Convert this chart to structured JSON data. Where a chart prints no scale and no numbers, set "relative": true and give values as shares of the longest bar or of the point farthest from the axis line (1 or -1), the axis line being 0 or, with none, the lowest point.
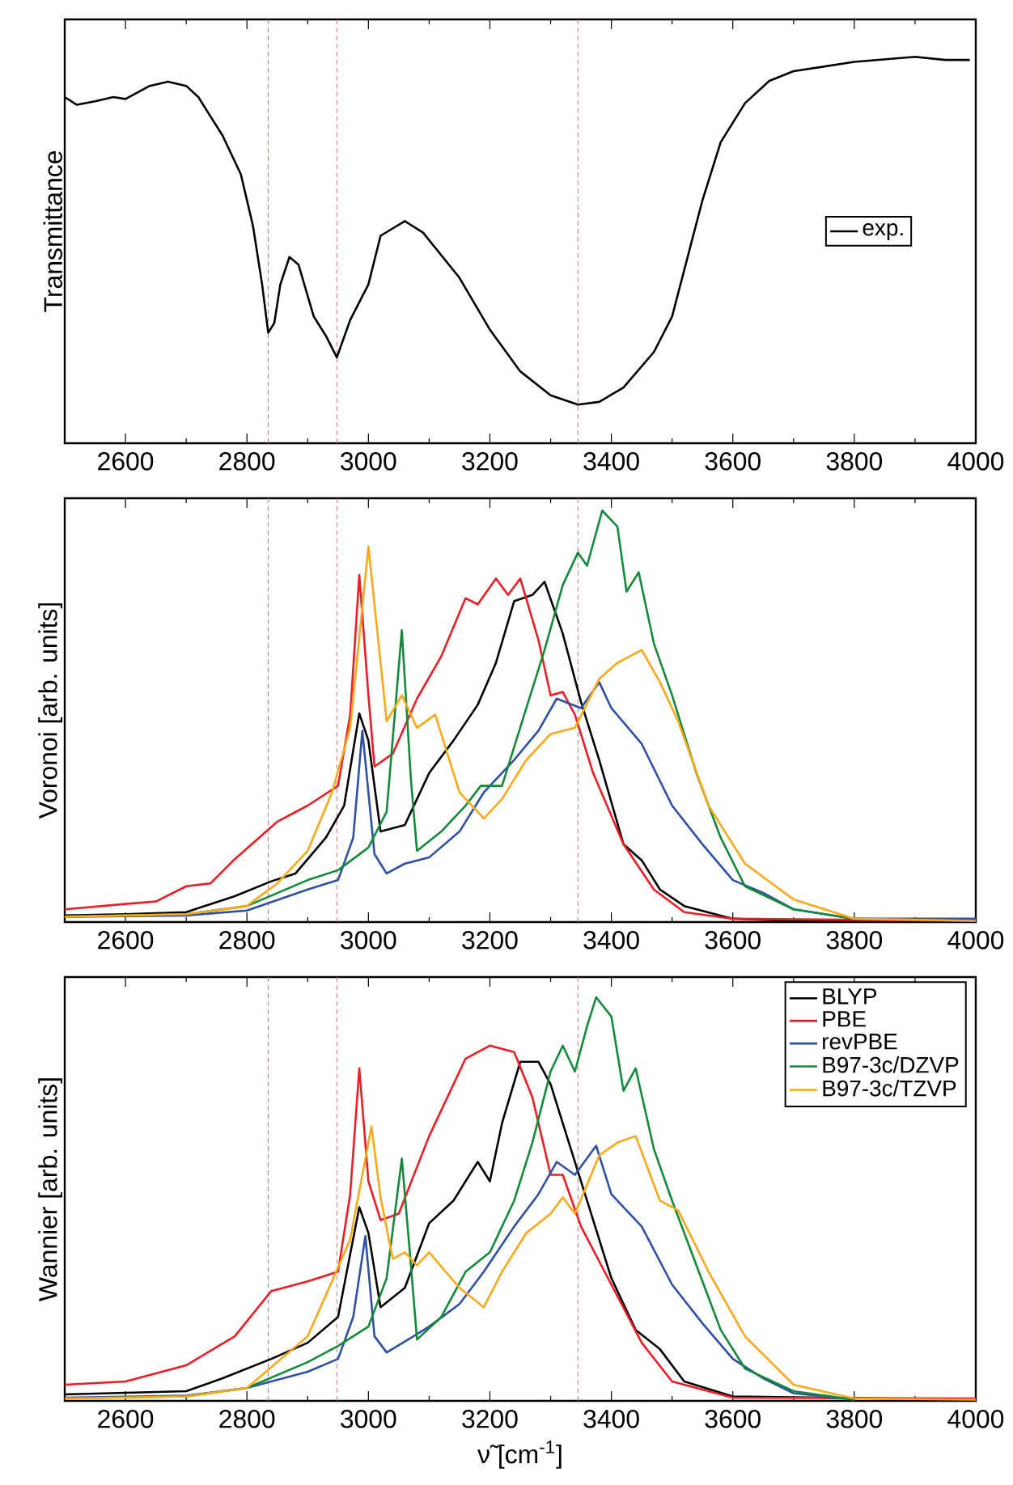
{
  "chart_data": [
    {
      "type": "line",
      "ylabel": "Transmittance",
      "relative": true,
      "xlim": [
        2500,
        4000
      ],
      "xticks": [
        2600,
        2800,
        3000,
        3200,
        3400,
        3600,
        3800,
        4000
      ],
      "legend": "right",
      "tick_labels": "x",
      "ref_lines": [
        {
          "axis": "x",
          "value": 2835,
          "color": "#c07878",
          "line_style": "dashed"
        },
        {
          "axis": "x",
          "value": 2948,
          "color": "#c07878",
          "line_style": "dashed"
        },
        {
          "axis": "x",
          "value": 3345,
          "color": "#c07878",
          "line_style": "dashed"
        }
      ],
      "series": [
        {
          "name": "exp.",
          "color": "#000000",
          "x": [
            2500,
            2520,
            2550,
            2580,
            2600,
            2640,
            2670,
            2700,
            2720,
            2760,
            2790,
            2810,
            2825,
            2835,
            2845,
            2855,
            2870,
            2885,
            2910,
            2930,
            2948,
            2970,
            3000,
            3020,
            3060,
            3090,
            3150,
            3200,
            3250,
            3300,
            3345,
            3380,
            3420,
            3470,
            3500,
            3550,
            3580,
            3620,
            3660,
            3700,
            3800,
            3900,
            3950,
            3990
          ],
          "values": [
            0.896,
            0.876,
            0.885,
            0.896,
            0.891,
            0.925,
            0.936,
            0.925,
            0.896,
            0.796,
            0.696,
            0.562,
            0.411,
            0.286,
            0.311,
            0.411,
            0.482,
            0.462,
            0.328,
            0.278,
            0.222,
            0.319,
            0.411,
            0.537,
            0.575,
            0.545,
            0.428,
            0.294,
            0.186,
            0.124,
            0.1,
            0.107,
            0.144,
            0.236,
            0.328,
            0.629,
            0.779,
            0.88,
            0.938,
            0.963,
            0.987,
            1.0,
            0.992,
            0.992
          ]
        }
      ]
    },
    {
      "type": "line",
      "ylabel": "Voronoi [arb. units]",
      "relative": true,
      "xlim": [
        2500,
        4000
      ],
      "xticks": [
        2600,
        2800,
        3000,
        3200,
        3400,
        3600,
        3800,
        4000
      ],
      "tick_labels": "x",
      "ref_lines": [
        {
          "axis": "x",
          "value": 2835,
          "color": "#c07878",
          "line_style": "dashed"
        },
        {
          "axis": "x",
          "value": 2948,
          "color": "#c07878",
          "line_style": "dashed"
        },
        {
          "axis": "x",
          "value": 3345,
          "color": "#c07878",
          "line_style": "dashed"
        }
      ],
      "series": [
        {
          "color": "#000000",
          "x": [
            2500,
            2600,
            2700,
            2780,
            2840,
            2880,
            2930,
            2960,
            2985,
            3000,
            3020,
            3060,
            3100,
            3140,
            3180,
            3210,
            3240,
            3270,
            3290,
            3320,
            3350,
            3380,
            3420,
            3450,
            3480,
            3520,
            3600,
            3700,
            3800,
            4000
          ],
          "values": [
            0.016,
            0.019,
            0.024,
            0.063,
            0.099,
            0.118,
            0.205,
            0.283,
            0.507,
            0.441,
            0.22,
            0.236,
            0.362,
            0.441,
            0.528,
            0.63,
            0.78,
            0.795,
            0.827,
            0.701,
            0.535,
            0.394,
            0.189,
            0.15,
            0.079,
            0.039,
            0.008,
            0.003,
            0.003,
            0.003
          ]
        },
        {
          "color": "#ee1c24",
          "x": [
            2500,
            2600,
            2650,
            2700,
            2740,
            2780,
            2820,
            2850,
            2900,
            2950,
            2970,
            2985,
            3000,
            3010,
            3040,
            3080,
            3120,
            3160,
            3180,
            3210,
            3230,
            3250,
            3280,
            3300,
            3320,
            3340,
            3370,
            3420,
            3470,
            3520,
            3600,
            4000
          ],
          "values": [
            0.031,
            0.044,
            0.05,
            0.087,
            0.094,
            0.153,
            0.205,
            0.244,
            0.283,
            0.331,
            0.504,
            0.843,
            0.551,
            0.378,
            0.409,
            0.543,
            0.646,
            0.787,
            0.772,
            0.835,
            0.795,
            0.835,
            0.685,
            0.551,
            0.559,
            0.504,
            0.362,
            0.189,
            0.079,
            0.024,
            0.008,
            0.003
          ]
        },
        {
          "color": "#2e4fa3",
          "x": [
            2500,
            2700,
            2800,
            2900,
            2950,
            2975,
            2990,
            3010,
            3030,
            3060,
            3100,
            3150,
            3190,
            3240,
            3280,
            3310,
            3350,
            3380,
            3400,
            3450,
            3500,
            3550,
            3600,
            3650,
            3700,
            3800,
            4000
          ],
          "values": [
            0.013,
            0.016,
            0.028,
            0.079,
            0.102,
            0.205,
            0.465,
            0.165,
            0.118,
            0.142,
            0.157,
            0.22,
            0.315,
            0.394,
            0.465,
            0.543,
            0.52,
            0.583,
            0.52,
            0.433,
            0.283,
            0.189,
            0.102,
            0.071,
            0.031,
            0.008,
            0.008
          ]
        },
        {
          "color": "#138a3a",
          "x": [
            2500,
            2700,
            2800,
            2900,
            2950,
            3000,
            3030,
            3055,
            3070,
            3080,
            3120,
            3160,
            3185,
            3220,
            3260,
            3290,
            3320,
            3345,
            3360,
            3385,
            3410,
            3425,
            3445,
            3470,
            3500,
            3540,
            3580,
            3620,
            3700,
            3800,
            4000
          ],
          "values": [
            0.013,
            0.019,
            0.039,
            0.102,
            0.126,
            0.181,
            0.268,
            0.709,
            0.346,
            0.173,
            0.22,
            0.283,
            0.331,
            0.331,
            0.52,
            0.661,
            0.819,
            0.898,
            0.866,
            1.0,
            0.961,
            0.803,
            0.85,
            0.677,
            0.551,
            0.362,
            0.205,
            0.087,
            0.031,
            0.008,
            0.003
          ]
        },
        {
          "color": "#fba81a",
          "x": [
            2500,
            2700,
            2800,
            2850,
            2900,
            2940,
            2970,
            3000,
            3020,
            3030,
            3055,
            3080,
            3110,
            3150,
            3190,
            3220,
            3260,
            3300,
            3340,
            3380,
            3410,
            3450,
            3480,
            3510,
            3560,
            3620,
            3700,
            3800,
            4000
          ],
          "values": [
            0.013,
            0.019,
            0.039,
            0.094,
            0.173,
            0.315,
            0.472,
            0.913,
            0.63,
            0.488,
            0.551,
            0.472,
            0.504,
            0.315,
            0.252,
            0.299,
            0.394,
            0.457,
            0.472,
            0.591,
            0.63,
            0.661,
            0.583,
            0.488,
            0.283,
            0.142,
            0.055,
            0.008,
            0.003
          ]
        }
      ]
    },
    {
      "type": "line",
      "ylabel": "Wannier [arb. units]",
      "xlabel": "ν̃ [cm$^{-1}$]",
      "relative": true,
      "xlim": [
        2500,
        4000
      ],
      "xticks": [
        2600,
        2800,
        3000,
        3200,
        3400,
        3600,
        3800,
        4000
      ],
      "legend": "top right",
      "tick_labels": "x",
      "ref_lines": [
        {
          "axis": "x",
          "value": 2835,
          "color": "#c07878",
          "line_style": "dashed"
        },
        {
          "axis": "x",
          "value": 2948,
          "color": "#c07878",
          "line_style": "dashed"
        },
        {
          "axis": "x",
          "value": 3345,
          "color": "#c07878",
          "line_style": "dashed"
        }
      ],
      "series": [
        {
          "name": "BLYP",
          "color": "#000000",
          "x": [
            2500,
            2700,
            2760,
            2840,
            2900,
            2950,
            2985,
            3000,
            3020,
            3060,
            3100,
            3140,
            3180,
            3200,
            3220,
            3250,
            3280,
            3300,
            3330,
            3360,
            3400,
            3440,
            3480,
            3520,
            3600,
            4000
          ],
          "values": [
            0.016,
            0.024,
            0.056,
            0.104,
            0.144,
            0.208,
            0.48,
            0.416,
            0.232,
            0.28,
            0.44,
            0.496,
            0.592,
            0.544,
            0.688,
            0.84,
            0.84,
            0.784,
            0.64,
            0.496,
            0.304,
            0.176,
            0.128,
            0.048,
            0.011,
            0.003
          ]
        },
        {
          "name": "PBE",
          "color": "#ee1c24",
          "x": [
            2500,
            2600,
            2700,
            2780,
            2840,
            2900,
            2950,
            2970,
            2985,
            3000,
            3020,
            3050,
            3100,
            3160,
            3200,
            3240,
            3270,
            3300,
            3320,
            3350,
            3400,
            3450,
            3500,
            3600,
            4000
          ],
          "values": [
            0.04,
            0.048,
            0.088,
            0.16,
            0.272,
            0.296,
            0.32,
            0.512,
            0.824,
            0.544,
            0.448,
            0.464,
            0.656,
            0.848,
            0.88,
            0.864,
            0.752,
            0.56,
            0.56,
            0.432,
            0.288,
            0.144,
            0.048,
            0.008,
            0.006
          ]
        },
        {
          "name": "revPBE",
          "color": "#2e4fa3",
          "x": [
            2500,
            2700,
            2800,
            2900,
            2950,
            2975,
            2995,
            3010,
            3030,
            3060,
            3100,
            3150,
            3190,
            3240,
            3280,
            3310,
            3340,
            3375,
            3400,
            3450,
            3500,
            3550,
            3600,
            3650,
            3700,
            3800
          ],
          "values": [
            0.008,
            0.013,
            0.032,
            0.072,
            0.104,
            0.208,
            0.408,
            0.16,
            0.12,
            0.147,
            0.184,
            0.24,
            0.32,
            0.432,
            0.512,
            0.592,
            0.56,
            0.632,
            0.512,
            0.432,
            0.288,
            0.192,
            0.104,
            0.056,
            0.019,
            0.003
          ]
        },
        {
          "name": "B97-3c/DZVP",
          "color": "#138a3a",
          "x": [
            2500,
            2700,
            2800,
            2900,
            2950,
            3000,
            3030,
            3055,
            3070,
            3080,
            3120,
            3160,
            3200,
            3240,
            3270,
            3300,
            3320,
            3340,
            3360,
            3375,
            3400,
            3420,
            3440,
            3470,
            3500,
            3540,
            3580,
            3620,
            3700,
            3800
          ],
          "values": [
            0.006,
            0.011,
            0.032,
            0.096,
            0.136,
            0.184,
            0.304,
            0.6,
            0.336,
            0.152,
            0.208,
            0.32,
            0.368,
            0.496,
            0.64,
            0.816,
            0.88,
            0.816,
            0.928,
            1.0,
            0.952,
            0.768,
            0.824,
            0.624,
            0.496,
            0.336,
            0.176,
            0.08,
            0.024,
            0.003
          ]
        },
        {
          "name": "B97-3c/TZVP",
          "color": "#fba81a",
          "x": [
            2500,
            2700,
            2800,
            2850,
            2900,
            2940,
            2970,
            3005,
            3020,
            3040,
            3060,
            3080,
            3100,
            3150,
            3190,
            3220,
            3260,
            3300,
            3320,
            3340,
            3380,
            3410,
            3440,
            3480,
            3510,
            3560,
            3620,
            3700,
            3800,
            4000
          ],
          "values": [
            0.006,
            0.011,
            0.032,
            0.096,
            0.16,
            0.296,
            0.4,
            0.68,
            0.504,
            0.352,
            0.368,
            0.336,
            0.368,
            0.28,
            0.232,
            0.32,
            0.416,
            0.464,
            0.504,
            0.464,
            0.608,
            0.64,
            0.656,
            0.496,
            0.472,
            0.32,
            0.16,
            0.04,
            0.006,
            0.003
          ]
        }
      ]
    }
  ]
}
